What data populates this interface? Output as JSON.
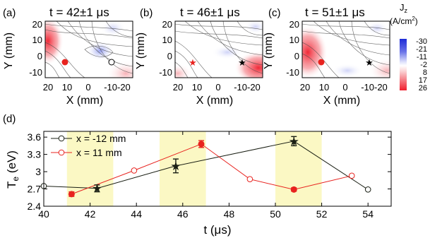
{
  "colors": {
    "red_series": "#e8231f",
    "black_series": "#1a1f14",
    "highlight": "#fbf8c4",
    "map_red": "#f01e2d",
    "map_blue": "#1d2bd6"
  },
  "maps": [
    {
      "panel_label": "(a)",
      "title": "t = 42±1 μs",
      "red_marker": "circle",
      "black_marker": "open-circle"
    },
    {
      "panel_label": "(b)",
      "title": "t = 46±1 μs",
      "red_marker": "star",
      "black_marker": "star"
    },
    {
      "panel_label": "(c)",
      "title": "t = 51±1 μs",
      "red_marker": "circle",
      "black_marker": "star"
    }
  ],
  "map_axes": {
    "xlabel": "X (mm)",
    "ylabel": "Y (mm)",
    "x_ticks": [
      "20",
      "10",
      "0",
      "-10-20"
    ],
    "y_ticks": [
      "20",
      "10",
      "0",
      "-10"
    ]
  },
  "colorbar": {
    "title": "J",
    "title_sub": "z",
    "unit": "(A/cm",
    "unit_sup": "2",
    "unit_close": ")",
    "ticks": [
      "-30",
      "-21",
      "-11",
      "-2",
      "8",
      "17",
      "26"
    ]
  },
  "chart_data": {
    "type": "line",
    "panel_label": "(d)",
    "xlabel": "t (μs)",
    "ylabel_main": "T",
    "ylabel_sub": "e",
    "ylabel_unit": " (eV)",
    "xlim": [
      40,
      55
    ],
    "ylim": [
      2.4,
      3.7
    ],
    "x_ticks": [
      "40",
      "42",
      "44",
      "46",
      "48",
      "50",
      "52",
      "54"
    ],
    "y_ticks": [
      "2.4",
      "2.7",
      "3",
      "3.3",
      "3.6"
    ],
    "highlight_bands": [
      [
        41,
        43
      ],
      [
        45,
        47
      ],
      [
        50,
        52
      ]
    ],
    "series": [
      {
        "name": "x = -12 mm",
        "marker": "open-circle",
        "x": [
          40,
          42.3,
          45.7,
          50.8,
          54
        ],
        "y": [
          2.75,
          2.71,
          3.1,
          3.53,
          2.69
        ],
        "highlighted": [
          false,
          true,
          true,
          true,
          false
        ],
        "err": [
          0,
          0.06,
          0.12,
          0.08,
          0
        ]
      },
      {
        "name": "x = 11 mm",
        "marker": "open-circle",
        "x": [
          41.2,
          43.9,
          46.8,
          48.9,
          50.8,
          53.3
        ],
        "y": [
          2.61,
          3.02,
          3.48,
          2.87,
          2.69,
          2.93
        ],
        "highlighted": [
          true,
          false,
          true,
          false,
          true,
          false
        ],
        "err": [
          0.04,
          0,
          0.06,
          0,
          0.03,
          0
        ]
      }
    ]
  }
}
